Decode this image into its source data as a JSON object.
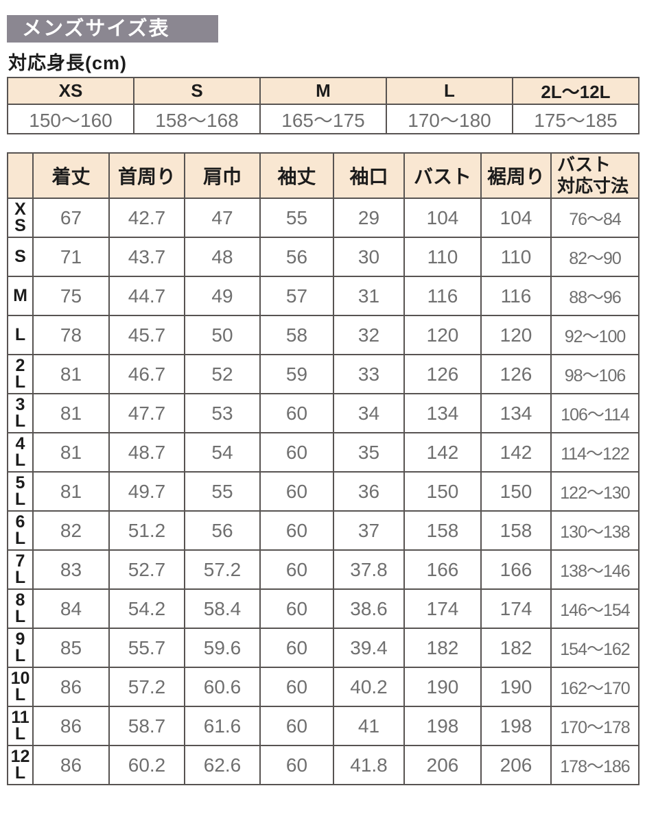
{
  "colors": {
    "title-bar-bg": "#8b8791",
    "header-bg": "#f9e7d2",
    "border": "#575351",
    "data-text": "#6f6f6f",
    "heading-text": "#1c1c1c",
    "title-text": "#ffffff"
  },
  "title": "メンズサイズ表",
  "height_table": {
    "caption": "対応身長(cm)",
    "headers": [
      "XS",
      "S",
      "M",
      "L",
      "2L～12L"
    ],
    "values": [
      "150～160",
      "158～168",
      "165～175",
      "170～180",
      "175～185"
    ]
  },
  "size_table": {
    "columns": [
      {
        "lines": [
          "着丈"
        ]
      },
      {
        "lines": [
          "首周り"
        ]
      },
      {
        "lines": [
          "肩巾"
        ]
      },
      {
        "lines": [
          "袖丈"
        ]
      },
      {
        "lines": [
          "袖口"
        ]
      },
      {
        "lines": [
          "バスト"
        ]
      },
      {
        "lines": [
          "裾周り"
        ]
      },
      {
        "lines": [
          "バスト",
          "対応寸法"
        ]
      }
    ],
    "rows": [
      {
        "label": "XS",
        "label_lines": [
          "X",
          "S"
        ],
        "values": [
          "67",
          "42.7",
          "47",
          "55",
          "29",
          "104",
          "104",
          "76～84"
        ]
      },
      {
        "label": "S",
        "label_lines": [
          "S"
        ],
        "values": [
          "71",
          "43.7",
          "48",
          "56",
          "30",
          "110",
          "110",
          "82～90"
        ]
      },
      {
        "label": "M",
        "label_lines": [
          "M"
        ],
        "values": [
          "75",
          "44.7",
          "49",
          "57",
          "31",
          "116",
          "116",
          "88～96"
        ]
      },
      {
        "label": "L",
        "label_lines": [
          "L"
        ],
        "values": [
          "78",
          "45.7",
          "50",
          "58",
          "32",
          "120",
          "120",
          "92～100"
        ]
      },
      {
        "label": "2L",
        "label_lines": [
          "2",
          "L"
        ],
        "values": [
          "81",
          "46.7",
          "52",
          "59",
          "33",
          "126",
          "126",
          "98～106"
        ]
      },
      {
        "label": "3L",
        "label_lines": [
          "3",
          "L"
        ],
        "values": [
          "81",
          "47.7",
          "53",
          "60",
          "34",
          "134",
          "134",
          "106～114"
        ]
      },
      {
        "label": "4L",
        "label_lines": [
          "4",
          "L"
        ],
        "values": [
          "81",
          "48.7",
          "54",
          "60",
          "35",
          "142",
          "142",
          "114～122"
        ]
      },
      {
        "label": "5L",
        "label_lines": [
          "5",
          "L"
        ],
        "values": [
          "81",
          "49.7",
          "55",
          "60",
          "36",
          "150",
          "150",
          "122～130"
        ]
      },
      {
        "label": "6L",
        "label_lines": [
          "6",
          "L"
        ],
        "values": [
          "82",
          "51.2",
          "56",
          "60",
          "37",
          "158",
          "158",
          "130～138"
        ]
      },
      {
        "label": "7L",
        "label_lines": [
          "7",
          "L"
        ],
        "values": [
          "83",
          "52.7",
          "57.2",
          "60",
          "37.8",
          "166",
          "166",
          "138～146"
        ]
      },
      {
        "label": "8L",
        "label_lines": [
          "8",
          "L"
        ],
        "values": [
          "84",
          "54.2",
          "58.4",
          "60",
          "38.6",
          "174",
          "174",
          "146～154"
        ]
      },
      {
        "label": "9L",
        "label_lines": [
          "9",
          "L"
        ],
        "values": [
          "85",
          "55.7",
          "59.6",
          "60",
          "39.4",
          "182",
          "182",
          "154～162"
        ]
      },
      {
        "label": "10L",
        "label_lines": [
          "10",
          "L"
        ],
        "values": [
          "86",
          "57.2",
          "60.6",
          "60",
          "40.2",
          "190",
          "190",
          "162～170"
        ]
      },
      {
        "label": "11L",
        "label_lines": [
          "11",
          "L"
        ],
        "values": [
          "86",
          "58.7",
          "61.6",
          "60",
          "41",
          "198",
          "198",
          "170～178"
        ]
      },
      {
        "label": "12L",
        "label_lines": [
          "12",
          "L"
        ],
        "values": [
          "86",
          "60.2",
          "62.6",
          "60",
          "41.8",
          "206",
          "206",
          "178～186"
        ]
      }
    ]
  }
}
